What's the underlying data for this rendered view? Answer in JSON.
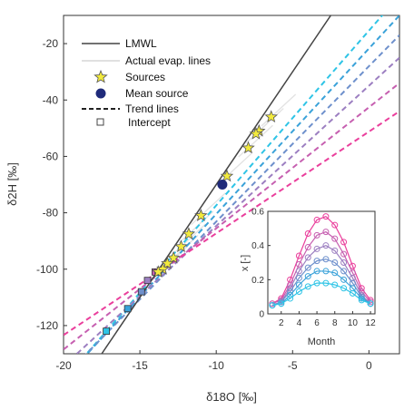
{
  "chart_data": [
    {
      "type": "line",
      "title": "",
      "xlabel": "δ18O [‰]",
      "ylabel": "δ2H [‰]",
      "xlim": [
        -20,
        2
      ],
      "ylim": [
        -130,
        -10
      ],
      "xticks": [
        "-20",
        "-15",
        "-10",
        "-5",
        "0"
      ],
      "yticks": [
        "-120",
        "-100",
        "-80",
        "-60",
        "-40",
        "-20"
      ],
      "grid": false,
      "legend_position": "top-left",
      "legend": [
        {
          "label": "LMWL",
          "marker": "solid-line"
        },
        {
          "label": "Actual evap. lines",
          "marker": "light-line"
        },
        {
          "label": "Sources",
          "marker": "star"
        },
        {
          "label": "Mean source",
          "marker": "filled-circle"
        },
        {
          "label": "Trend lines",
          "marker": "dashed-line"
        },
        {
          "label": "Intercept",
          "marker": "square"
        }
      ],
      "lmwl": {
        "slope": 8,
        "intercept": 10,
        "color": "#444444"
      },
      "sources": {
        "color": "#f2ea3c",
        "x": [
          -6.4,
          -7.2,
          -7.4,
          -7.9,
          -9.3,
          -11.0,
          -11.8,
          -12.3,
          -12.8,
          -13.2,
          -13.5,
          -13.8
        ],
        "y": [
          -46,
          -51,
          -52,
          -57,
          -67,
          -81,
          -87.5,
          -92,
          -96,
          -98,
          -100,
          -101
        ]
      },
      "mean_source": {
        "x": -9.6,
        "y": -70,
        "color": "#1f2a7a"
      },
      "trend_lines": [
        {
          "color": "#2ec4e6",
          "x1": -17.2,
          "y1": -122,
          "x2": 2,
          "y2": -3
        },
        {
          "color": "#3aa2d9",
          "x1": -16.4,
          "y1": -118,
          "x2": 2,
          "y2": -10
        },
        {
          "color": "#6e90cc",
          "x1": -15.6,
          "y1": -114,
          "x2": 2,
          "y2": -17
        },
        {
          "color": "#9c7fc1",
          "x1": -14.9,
          "y1": -109,
          "x2": 2,
          "y2": -25
        },
        {
          "color": "#c65fb0",
          "x1": -14.3,
          "y1": -104,
          "x2": 2,
          "y2": -34
        },
        {
          "color": "#ea3f9c",
          "x1": -13.8,
          "y1": -101,
          "x2": 2,
          "y2": -44
        }
      ],
      "intercepts": {
        "x": [
          -17.2,
          -15.8,
          -14.9,
          -14.5,
          -14.0,
          -13.8
        ],
        "y": [
          -122,
          -114,
          -108,
          -104,
          -101,
          -101
        ],
        "colors": [
          "#2ec4e6",
          "#3aa2d9",
          "#6e90cc",
          "#9c7fc1",
          "#c65fb0",
          "#ea3f9c"
        ]
      }
    },
    {
      "type": "line",
      "title": "",
      "xlabel": "Month",
      "ylabel": "x [-]",
      "xlim": [
        0.5,
        12.5
      ],
      "ylim": [
        0,
        0.6
      ],
      "xticks": [
        "2",
        "4",
        "6",
        "8",
        "10",
        "12"
      ],
      "yticks": [
        "0",
        "0.2",
        "0.4",
        "0.6"
      ],
      "categories": [
        1,
        2,
        3,
        4,
        5,
        6,
        7,
        8,
        9,
        10,
        11,
        12
      ],
      "series": [
        {
          "color": "#ea3f9c",
          "values": [
            0.06,
            0.09,
            0.2,
            0.34,
            0.47,
            0.55,
            0.57,
            0.52,
            0.42,
            0.28,
            0.15,
            0.08
          ]
        },
        {
          "color": "#c65fb0",
          "values": [
            0.06,
            0.08,
            0.17,
            0.29,
            0.39,
            0.46,
            0.48,
            0.44,
            0.35,
            0.24,
            0.13,
            0.07
          ]
        },
        {
          "color": "#9c7fc1",
          "values": [
            0.05,
            0.07,
            0.15,
            0.25,
            0.33,
            0.38,
            0.4,
            0.37,
            0.3,
            0.21,
            0.11,
            0.06
          ]
        },
        {
          "color": "#6e90cc",
          "values": [
            0.05,
            0.07,
            0.13,
            0.21,
            0.27,
            0.31,
            0.32,
            0.3,
            0.25,
            0.18,
            0.1,
            0.06
          ]
        },
        {
          "color": "#3aa2d9",
          "values": [
            0.05,
            0.06,
            0.11,
            0.17,
            0.22,
            0.25,
            0.25,
            0.24,
            0.2,
            0.15,
            0.09,
            0.06
          ]
        },
        {
          "color": "#2ec4e6",
          "values": [
            0.05,
            0.06,
            0.09,
            0.13,
            0.16,
            0.18,
            0.18,
            0.17,
            0.15,
            0.12,
            0.08,
            0.06
          ]
        }
      ]
    }
  ]
}
